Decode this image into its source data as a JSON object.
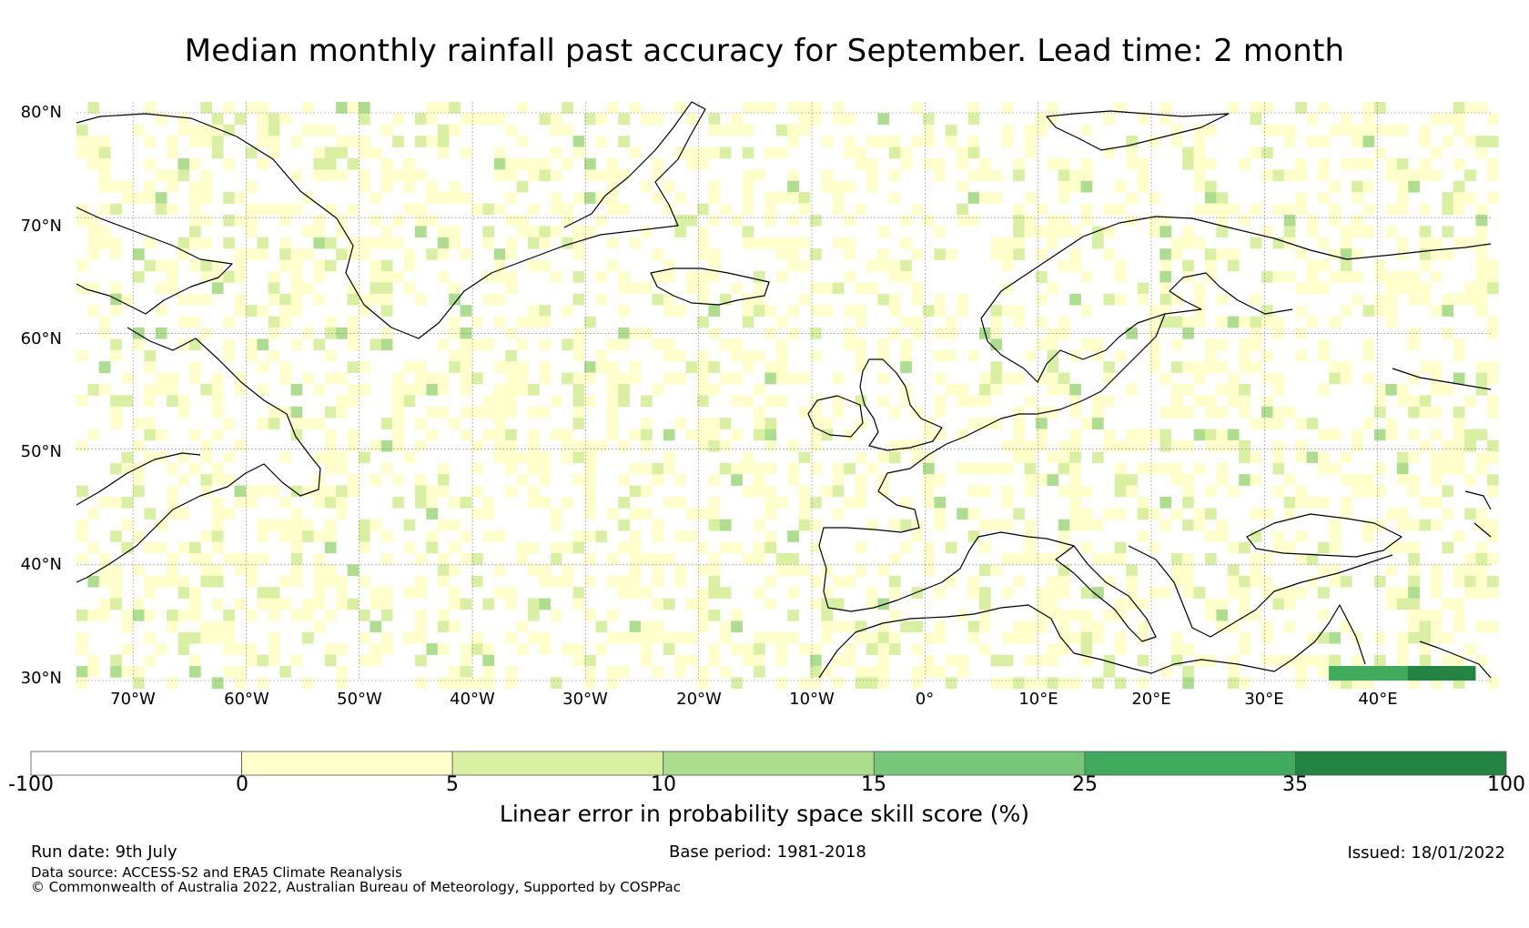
{
  "title": "Median monthly rainfall past accuracy for September. Lead time: 2 month",
  "map": {
    "lon_range": [
      -75,
      50
    ],
    "lat_range": [
      30,
      80
    ],
    "lat_labels": [
      "80°N",
      "70°N",
      "60°N",
      "50°N",
      "40°N",
      "30°N"
    ],
    "lon_labels": [
      "70°W",
      "60°W",
      "50°W",
      "40°W",
      "30°W",
      "20°W",
      "10°W",
      "0°",
      "10°E",
      "20°E",
      "30°E",
      "40°E"
    ]
  },
  "colorbar": {
    "ticks": [
      "-100",
      "0",
      "5",
      "10",
      "15",
      "25",
      "35",
      "100"
    ],
    "colors": [
      "#ffffff",
      "#ffffcc",
      "#d9f0a3",
      "#addd8e",
      "#78c679",
      "#41ab5d",
      "#238443"
    ],
    "label": "Linear error in probability space skill score (%)"
  },
  "footer": {
    "run_date": "Run date: 9th July",
    "base_period": "Base period: 1981-2018",
    "issued": "Issued: 18/01/2022",
    "data_source": "Data source: ACCESS-S2 and ERA5 Climate Reanalysis",
    "copyright": "© Commonwealth of Australia 2022, Australian Bureau of Meteorology, Supported by COSPPac"
  }
}
